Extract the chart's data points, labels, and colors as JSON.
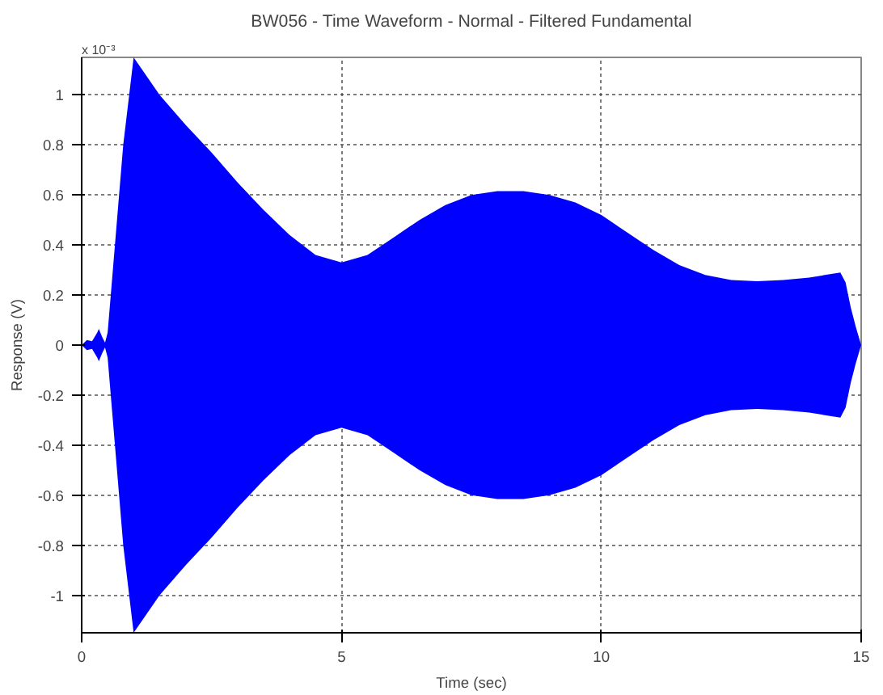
{
  "chart_data": {
    "type": "area",
    "title": "BW056 - Time Waveform - Normal - Filtered Fundamental",
    "xlabel": "Time (sec)",
    "ylabel": "Response (V)",
    "annotations": [
      "x 10⁻³"
    ],
    "x": [
      0,
      0.1,
      0.2,
      0.3,
      0.33,
      0.4,
      0.45,
      0.5,
      0.6,
      0.8,
      1.0,
      1.1,
      1.5,
      2,
      2.5,
      3,
      3.5,
      4,
      4.5,
      5,
      5.5,
      6,
      6.5,
      7,
      7.5,
      8,
      8.5,
      9,
      9.5,
      10,
      10.5,
      11,
      11.5,
      12,
      12.5,
      13,
      13.5,
      14,
      14.3,
      14.6,
      14.7,
      14.8,
      14.9,
      15
    ],
    "series": [
      {
        "color": "#0000ff",
        "values": [
          0,
          0.02,
          0.015,
          0.05,
          0.065,
          0.03,
          0.01,
          0.05,
          0.3,
          0.8,
          1.15,
          1.12,
          1.0,
          0.88,
          0.77,
          0.65,
          0.54,
          0.44,
          0.36,
          0.33,
          0.36,
          0.43,
          0.5,
          0.56,
          0.6,
          0.615,
          0.615,
          0.6,
          0.57,
          0.52,
          0.45,
          0.38,
          0.32,
          0.28,
          0.26,
          0.255,
          0.26,
          0.27,
          0.28,
          0.29,
          0.25,
          0.15,
          0.07,
          0
        ]
      },
      {
        "color": "#0000ff",
        "values": [
          0,
          -0.02,
          -0.015,
          -0.05,
          -0.065,
          -0.03,
          -0.01,
          -0.05,
          -0.3,
          -0.8,
          -1.15,
          -1.12,
          -1.0,
          -0.88,
          -0.77,
          -0.65,
          -0.54,
          -0.44,
          -0.36,
          -0.33,
          -0.36,
          -0.43,
          -0.5,
          -0.56,
          -0.6,
          -0.615,
          -0.615,
          -0.6,
          -0.57,
          -0.52,
          -0.45,
          -0.38,
          -0.32,
          -0.28,
          -0.26,
          -0.255,
          -0.26,
          -0.27,
          -0.28,
          -0.29,
          -0.25,
          -0.15,
          -0.07,
          0
        ]
      }
    ],
    "xlim": [
      0,
      15
    ],
    "ylim": [
      -1.15,
      1.15
    ],
    "xticks": [
      0,
      5,
      10,
      15
    ],
    "yticks": [
      -1,
      -0.8,
      -0.6,
      -0.4,
      -0.2,
      0,
      0.2,
      0.4,
      0.6,
      0.8,
      1
    ],
    "grid": true
  }
}
